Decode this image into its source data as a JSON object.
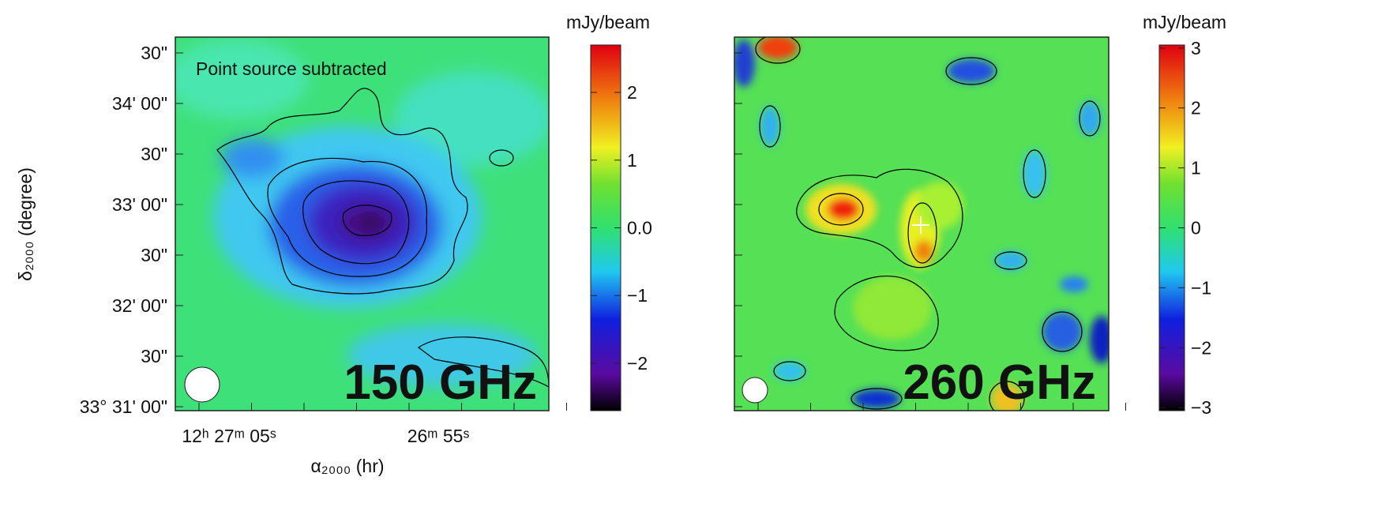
{
  "y_axis": {
    "label": "δ₂₀₀₀ (degree)",
    "ticks": [
      "30\"",
      "34' 00\"",
      "30\"",
      "33' 00\"",
      "30\"",
      "32' 00\"",
      "30\"",
      "33° 31' 00\""
    ]
  },
  "x_axis": {
    "label": "α₂₀₀₀ (hr)",
    "ticks": [
      "12ʰ 27ᵐ 05ˢ",
      "26ᵐ 55ˢ"
    ]
  },
  "panels": [
    {
      "annotation": "Point source subtracted",
      "frequency": "150 GHz",
      "colorbar": {
        "unit": "mJy/beam",
        "lim": [
          -2.7,
          2.7
        ],
        "ticks": [
          {
            "value": -2,
            "label": "−2"
          },
          {
            "value": -1,
            "label": "−1"
          },
          {
            "value": 0,
            "label": "0.0"
          },
          1,
          2
        ]
      }
    },
    {
      "frequency": "260 GHz",
      "colorbar": {
        "unit": "mJy/beam",
        "lim": [
          -3.05,
          3.05
        ],
        "ticks": [
          {
            "value": -3,
            "label": "−3"
          },
          {
            "value": -2,
            "label": "−2"
          },
          {
            "value": -1,
            "label": "−1"
          },
          0,
          1,
          2,
          3
        ]
      }
    }
  ]
}
